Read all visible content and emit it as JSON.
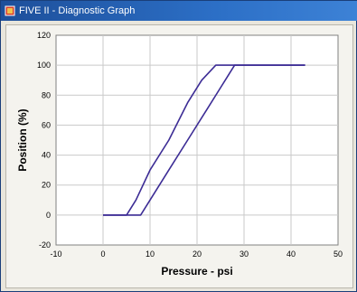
{
  "window": {
    "title": "FIVE II - Diagnostic Graph"
  },
  "chart_data": {
    "type": "line",
    "xlabel": "Pressure - psi",
    "ylabel": "Position (%)",
    "xlim": [
      -10,
      50
    ],
    "ylim": [
      -20,
      120
    ],
    "x_ticks": [
      -10,
      0,
      10,
      20,
      30,
      40,
      50
    ],
    "y_ticks": [
      -20,
      0,
      20,
      40,
      60,
      80,
      100,
      120
    ],
    "grid": true,
    "series": [
      {
        "x": [
          0,
          5,
          7,
          10,
          14,
          18,
          21,
          24,
          25,
          30,
          43
        ],
        "y": [
          0,
          0,
          10,
          30,
          50,
          75,
          90,
          100,
          100,
          100,
          100
        ]
      },
      {
        "x": [
          0,
          8,
          10,
          14,
          18,
          22,
          25,
          28,
          30,
          43
        ],
        "y": [
          0,
          0,
          10,
          30,
          50,
          70,
          85,
          100,
          100,
          100
        ]
      }
    ],
    "colors": {
      "series": "#3c2c95",
      "grid": "#c9c9c9",
      "axis_text": "#000000"
    }
  }
}
